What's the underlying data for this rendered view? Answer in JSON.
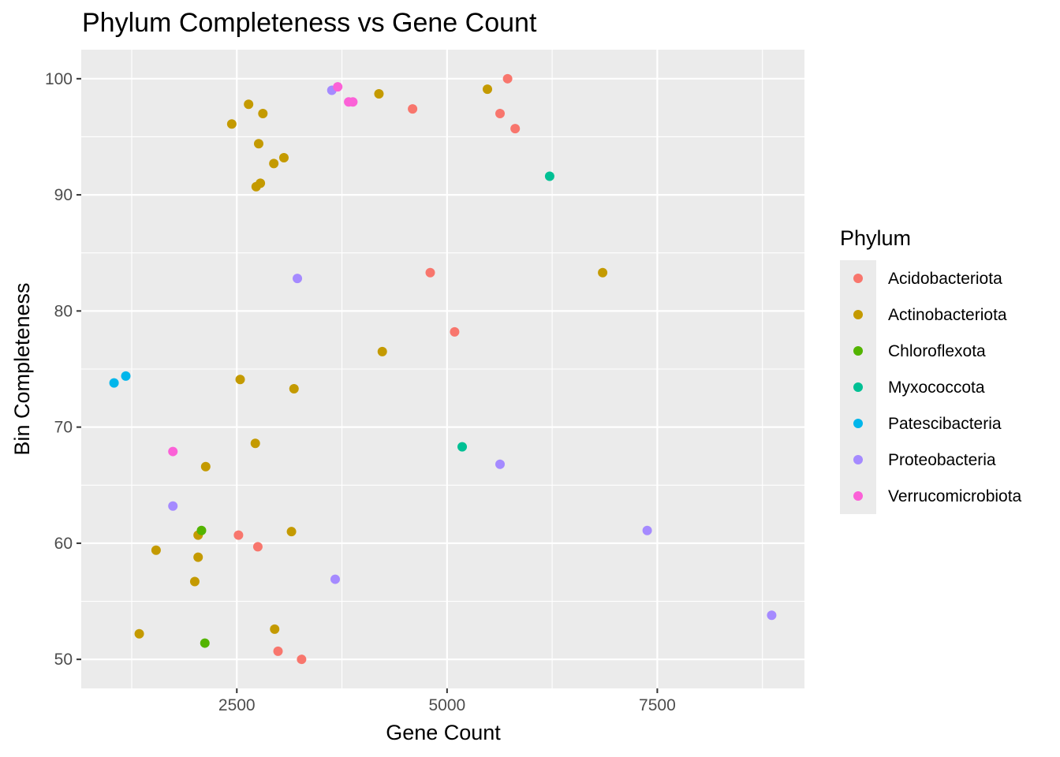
{
  "chart_data": {
    "type": "scatter",
    "title": "Phylum Completeness vs Gene Count",
    "xlabel": "Gene Count",
    "ylabel": "Bin Completeness",
    "xlim": [
      650,
      9250
    ],
    "ylim": [
      47.5,
      102.5
    ],
    "x_ticks": [
      2500,
      5000,
      7500
    ],
    "y_ticks": [
      50,
      60,
      70,
      80,
      90,
      100
    ],
    "x_tick_labels": [
      "2500",
      "5000",
      "7500"
    ],
    "y_tick_labels": [
      "50",
      "60",
      "70",
      "80",
      "90",
      "100"
    ],
    "grid": true,
    "legend": {
      "title": "Phylum",
      "position": "right"
    },
    "series": [
      {
        "name": "Acidobacteriota",
        "color": "#F8766D",
        "points": [
          [
            5720,
            100.0
          ],
          [
            4590,
            97.4
          ],
          [
            5630,
            97.0
          ],
          [
            5810,
            95.7
          ],
          [
            4800,
            83.3
          ],
          [
            5090,
            78.2
          ],
          [
            2520,
            60.7
          ],
          [
            2750,
            59.7
          ],
          [
            2990,
            50.7
          ],
          [
            3270,
            50.0
          ]
        ]
      },
      {
        "name": "Actinobacteriota",
        "color": "#C49A00",
        "points": [
          [
            5480,
            99.1
          ],
          [
            4190,
            98.7
          ],
          [
            2640,
            97.8
          ],
          [
            2810,
            97.0
          ],
          [
            2440,
            96.1
          ],
          [
            2760,
            94.4
          ],
          [
            3060,
            93.2
          ],
          [
            2940,
            92.7
          ],
          [
            2780,
            91.0
          ],
          [
            2730,
            90.7
          ],
          [
            6850,
            83.3
          ],
          [
            4230,
            76.5
          ],
          [
            2540,
            74.1
          ],
          [
            3180,
            73.3
          ],
          [
            2720,
            68.6
          ],
          [
            2130,
            66.6
          ],
          [
            3150,
            61.0
          ],
          [
            2040,
            60.7
          ],
          [
            1540,
            59.4
          ],
          [
            2040,
            58.8
          ],
          [
            2000,
            56.7
          ],
          [
            2950,
            52.6
          ],
          [
            1340,
            52.2
          ]
        ]
      },
      {
        "name": "Chloroflexota",
        "color": "#53B400",
        "points": [
          [
            2080,
            61.1
          ],
          [
            2120,
            51.4
          ]
        ]
      },
      {
        "name": "Myxococcota",
        "color": "#00C094",
        "points": [
          [
            6220,
            91.6
          ],
          [
            5180,
            68.3
          ]
        ]
      },
      {
        "name": "Patescibacteria",
        "color": "#00B6EB",
        "points": [
          [
            1040,
            73.8
          ],
          [
            1180,
            74.4
          ]
        ]
      },
      {
        "name": "Proteobacteria",
        "color": "#A58AFF",
        "points": [
          [
            3630,
            99.0
          ],
          [
            3220,
            82.8
          ],
          [
            5630,
            66.8
          ],
          [
            1740,
            63.2
          ],
          [
            3670,
            56.9
          ],
          [
            7380,
            61.1
          ],
          [
            8860,
            53.8
          ]
        ]
      },
      {
        "name": "Verrucomicrobiota",
        "color": "#FB61D7",
        "points": [
          [
            3700,
            99.3
          ],
          [
            3830,
            98.0
          ],
          [
            3880,
            98.0
          ],
          [
            1740,
            67.9
          ]
        ]
      }
    ]
  }
}
